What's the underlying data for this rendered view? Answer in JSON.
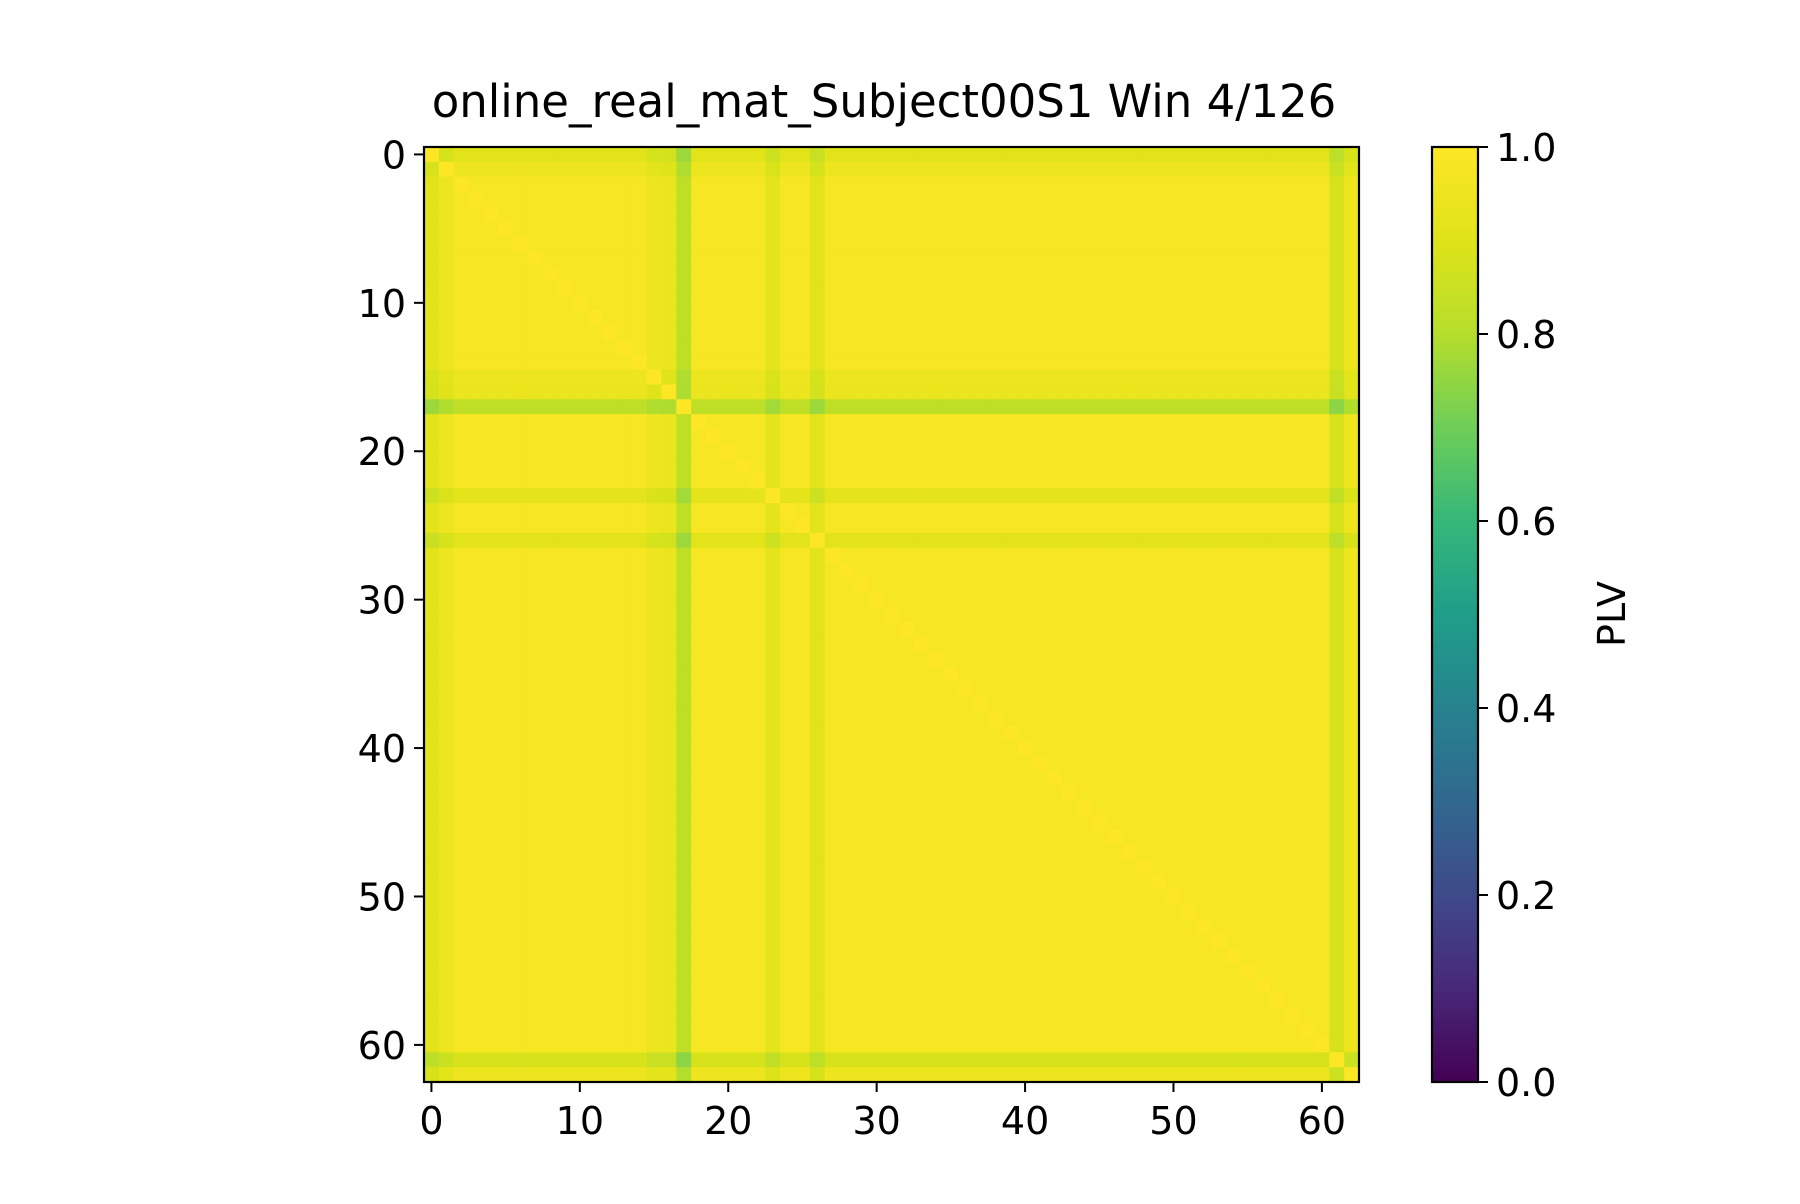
{
  "chart_data": {
    "type": "heatmap",
    "title": "online_real_mat_Subject00S1 Win 4/126",
    "xlabel": "",
    "ylabel": "",
    "matrix_size": 63,
    "x_ticks": [
      0,
      10,
      20,
      30,
      40,
      50,
      60
    ],
    "y_ticks": [
      0,
      10,
      20,
      30,
      40,
      50,
      60
    ],
    "xlim": [
      -0.5,
      62.5
    ],
    "ylim": [
      62.5,
      -0.5
    ],
    "colormap": "viridis",
    "colorbar": {
      "label": "PLV",
      "range": [
        0.0,
        1.0
      ],
      "ticks": [
        "0.0",
        "0.2",
        "0.4",
        "0.6",
        "0.8",
        "1.0"
      ]
    },
    "base_value": 0.98,
    "diagonal_value": 1.0,
    "channel_factors": [
      {
        "channel": 0,
        "factor": 0.93
      },
      {
        "channel": 1,
        "factor": 0.965
      },
      {
        "channel": 15,
        "factor": 0.965
      },
      {
        "channel": 16,
        "factor": 0.96
      },
      {
        "channel": 17,
        "factor": 0.84
      },
      {
        "channel": 23,
        "factor": 0.94
      },
      {
        "channel": 26,
        "factor": 0.93
      },
      {
        "channel": 61,
        "factor": 0.9
      },
      {
        "channel": 62,
        "factor": 0.97
      }
    ],
    "grid": false
  }
}
